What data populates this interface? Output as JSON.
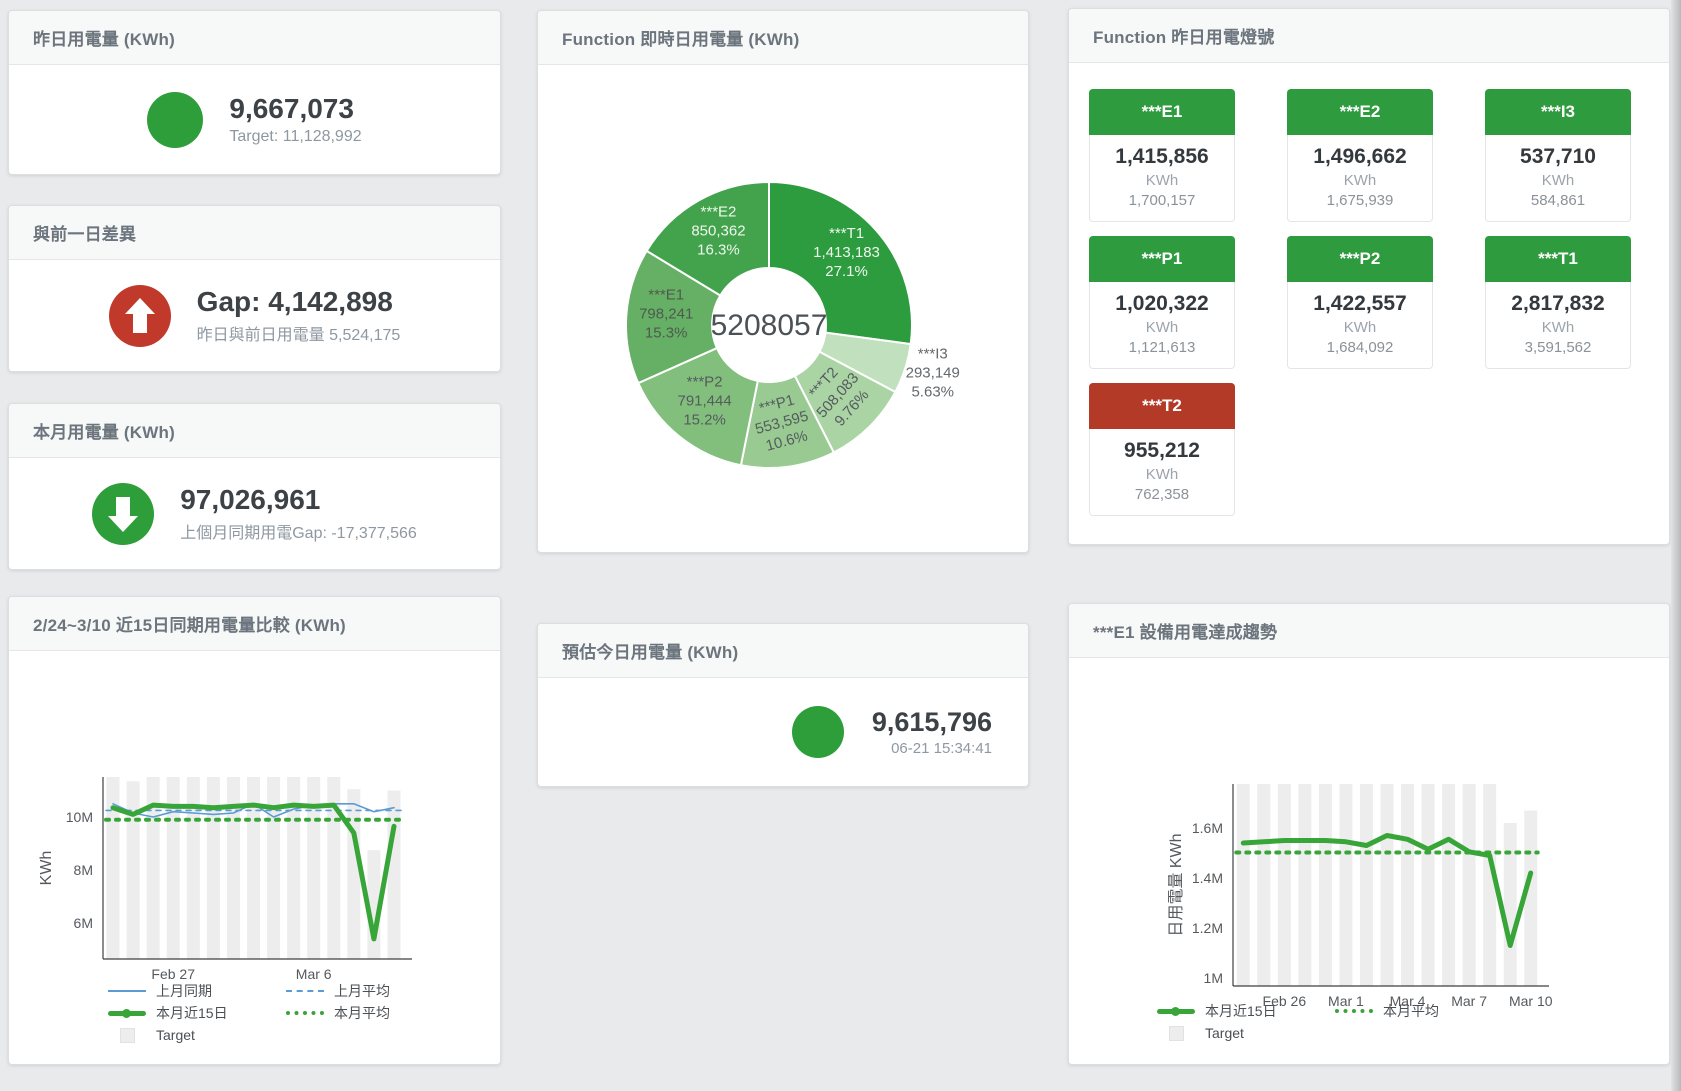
{
  "colors": {
    "green": "#2e9e3a",
    "red": "#c0392b",
    "tile_green": "#2e9b3e",
    "tile_red": "#b23a26",
    "line_green": "#38a538",
    "line_blue": "#5b9bd5",
    "bar_gray": "#ededed"
  },
  "cards": {
    "yesterday": {
      "title": "昨日用電量 (KWh)",
      "value": "9,667,073",
      "subtitle": "Target: 11,128,992"
    },
    "gap": {
      "title": "與前一日差異",
      "value": "Gap: 4,142,898",
      "subtitle": "昨日與前日用電量 5,524,175"
    },
    "month": {
      "title": "本月用電量 (KWh)",
      "value": "97,026,961",
      "subtitle": "上個月同期用電Gap: -17,377,566"
    },
    "estimate": {
      "title": "預估今日用電量 (KWh)",
      "value": "9,615,796",
      "subtitle": "06-21 15:34:41"
    }
  },
  "lamp_panel": {
    "title": "Function 昨日用電燈號",
    "unit": "KWh",
    "tiles": [
      {
        "name": "***E1",
        "value": "1,415,856",
        "target": "1,700,157",
        "color": "green"
      },
      {
        "name": "***E2",
        "value": "1,496,662",
        "target": "1,675,939",
        "color": "green"
      },
      {
        "name": "***I3",
        "value": "537,710",
        "target": "584,861",
        "color": "green"
      },
      {
        "name": "***P1",
        "value": "1,020,322",
        "target": "1,121,613",
        "color": "green"
      },
      {
        "name": "***P2",
        "value": "1,422,557",
        "target": "1,684,092",
        "color": "green"
      },
      {
        "name": "***T1",
        "value": "2,817,832",
        "target": "3,591,562",
        "color": "green"
      },
      {
        "name": "***T2",
        "value": "955,212",
        "target": "762,358",
        "color": "red"
      }
    ]
  },
  "chart_data": [
    {
      "type": "pie",
      "title": "Function 即時日用電量 (KWh)",
      "center_total": "5208057",
      "legend_position": "none",
      "segments": [
        {
          "name": "***T1",
          "value": 1413183,
          "value_str": "1,413,183",
          "pct": "27.1%",
          "color": "#2d9c3e",
          "label_color": "#eef7ee",
          "rotate": 0,
          "outside": false
        },
        {
          "name": "***I3",
          "value": 293149,
          "value_str": "293,149",
          "pct": "5.63%",
          "color": "#c1e0bd",
          "label_color": "#63696d",
          "rotate": 0,
          "outside": true
        },
        {
          "name": "***T2",
          "value": 508083,
          "value_str": "508,083",
          "pct": "9.76%",
          "color": "#aad4a4",
          "label_color": "#555b5e",
          "rotate": -48,
          "outside": false
        },
        {
          "name": "***P1",
          "value": 553595,
          "value_str": "553,595",
          "pct": "10.6%",
          "color": "#98ca92",
          "label_color": "#555b5e",
          "rotate": -15,
          "outside": false
        },
        {
          "name": "***P2",
          "value": 791444,
          "value_str": "791,444",
          "pct": "15.2%",
          "color": "#82bf7c",
          "label_color": "#555b5e",
          "rotate": 0,
          "outside": false
        },
        {
          "name": "***E1",
          "value": 798241,
          "value_str": "798,241",
          "pct": "15.3%",
          "color": "#66b065",
          "label_color": "#4e5a50",
          "rotate": 0,
          "outside": false
        },
        {
          "name": "***E2",
          "value": 850362,
          "value_str": "850,362",
          "pct": "16.3%",
          "color": "#43a34c",
          "label_color": "#eef7ee",
          "rotate": 0,
          "outside": false
        }
      ]
    },
    {
      "type": "line",
      "title": "2/24~3/10 近15日同期用電量比較 (KWh)",
      "ylabel": "KWh",
      "unit": "M KWh",
      "grid": false,
      "legend_position": "bottom",
      "ylim": [
        4.64,
        11.51
      ],
      "y_ticks": [
        {
          "label": "10M",
          "value": 10
        },
        {
          "label": "8M",
          "value": 8
        },
        {
          "label": "6M",
          "value": 6
        }
      ],
      "x_ticks": [
        {
          "label": "Feb 27",
          "index": 3
        },
        {
          "label": "Mar 6",
          "index": 10
        }
      ],
      "bars": {
        "name": "Target",
        "color": "#ededed",
        "values": [
          11.6,
          11.35,
          11.6,
          11.62,
          11.6,
          11.6,
          11.62,
          11.6,
          11.6,
          11.6,
          11.6,
          11.58,
          11.05,
          8.75,
          11.0
        ]
      },
      "series": [
        {
          "name": "上月同期",
          "color": "#5b9bd5",
          "width": 1.6,
          "values": [
            10.5,
            10.15,
            10.0,
            10.2,
            10.15,
            10.1,
            10.15,
            10.5,
            10.0,
            10.3,
            10.45,
            10.5,
            10.5,
            10.2,
            10.35
          ]
        },
        {
          "name": "上月平均",
          "color": "#5b9bd5",
          "width": 1.6,
          "dash": "5 5",
          "const": 10.25
        },
        {
          "name": "本月近15日",
          "color": "#38a538",
          "width": 5,
          "values": [
            10.35,
            10.1,
            10.45,
            10.4,
            10.4,
            10.35,
            10.4,
            10.45,
            10.35,
            10.45,
            10.4,
            10.45,
            9.4,
            5.4,
            9.65
          ]
        },
        {
          "name": "本月平均",
          "color": "#38a538",
          "width": 4,
          "dash": "3 7",
          "const": 9.9
        }
      ],
      "legend_rows": [
        [
          {
            "label": "上月同期",
            "swatch": "blue-line"
          },
          {
            "label": "上月平均",
            "swatch": "blue-dash"
          }
        ],
        [
          {
            "label": "本月近15日",
            "swatch": "green-line"
          },
          {
            "label": "本月平均",
            "swatch": "green-dot"
          }
        ],
        [
          {
            "label": "Target",
            "swatch": "gray-square"
          }
        ]
      ]
    },
    {
      "type": "line",
      "title": "***E1 設備用電達成趨勢",
      "ylabel": "日用電量 KWh",
      "unit": "M KWh",
      "grid": false,
      "legend_position": "bottom",
      "ylim": [
        0.968,
        1.776
      ],
      "y_ticks": [
        {
          "label": "1.6M",
          "value": 1.6
        },
        {
          "label": "1.4M",
          "value": 1.4
        },
        {
          "label": "1.2M",
          "value": 1.2
        },
        {
          "label": "1M",
          "value": 1.0
        }
      ],
      "x_ticks": [
        {
          "label": "Feb 26",
          "index": 2
        },
        {
          "label": "Mar 1",
          "index": 5
        },
        {
          "label": "Mar 4",
          "index": 8
        },
        {
          "label": "Mar 7",
          "index": 11
        },
        {
          "label": "Mar 10",
          "index": 14
        }
      ],
      "bars": {
        "name": "Target",
        "color": "#ededed",
        "values": [
          1.78,
          1.78,
          1.78,
          1.78,
          1.78,
          1.78,
          1.78,
          1.78,
          1.78,
          1.78,
          1.78,
          1.78,
          1.78,
          1.62,
          1.67
        ]
      },
      "series": [
        {
          "name": "本月近15日",
          "color": "#38a538",
          "width": 5,
          "values": [
            1.54,
            1.545,
            1.55,
            1.55,
            1.55,
            1.545,
            1.53,
            1.57,
            1.555,
            1.515,
            1.555,
            1.505,
            1.49,
            1.13,
            1.42
          ]
        },
        {
          "name": "本月平均",
          "color": "#38a538",
          "width": 4,
          "dash": "3 7",
          "const": 1.502
        }
      ],
      "legend_rows": [
        [
          {
            "label": "本月近15日",
            "swatch": "green-line"
          },
          {
            "label": "本月平均",
            "swatch": "green-dot"
          }
        ],
        [
          {
            "label": "Target",
            "swatch": "gray-square"
          }
        ]
      ]
    }
  ]
}
